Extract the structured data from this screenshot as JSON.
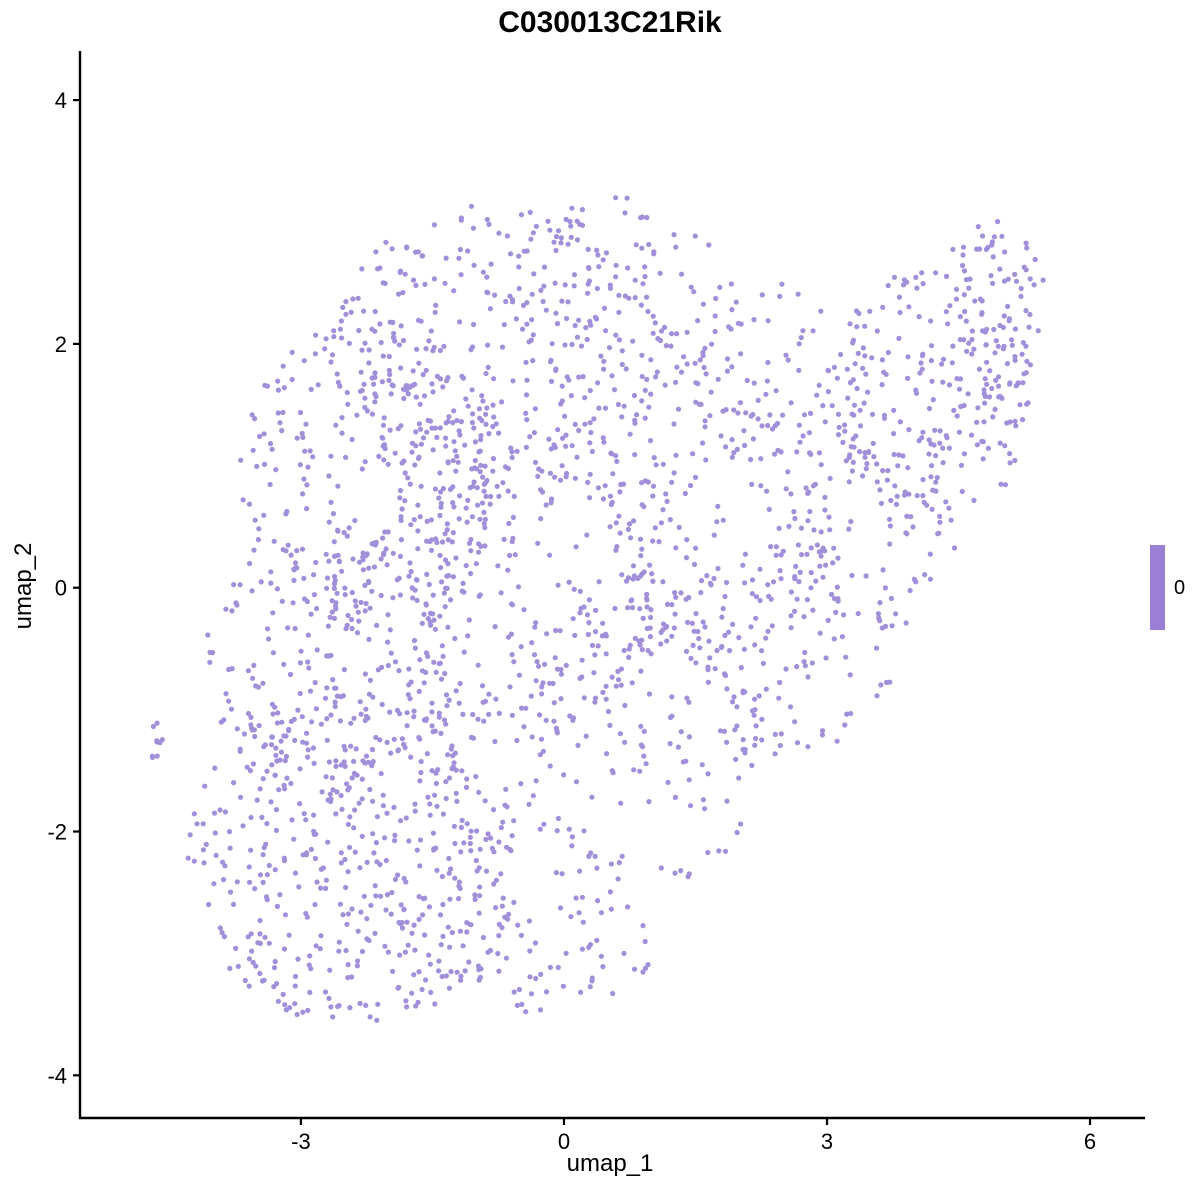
{
  "chart_data": {
    "type": "scatter",
    "title": "C030013C21Rik",
    "xlabel": "umap_1",
    "ylabel": "umap_2",
    "xlim": [
      -5.52,
      6.57
    ],
    "ylim": [
      -4.35,
      4.37
    ],
    "xticks": [
      -3,
      0,
      3,
      6
    ],
    "yticks": [
      -4,
      -2,
      0,
      2,
      4
    ],
    "grid": false,
    "legend": {
      "position": "right",
      "value_label": "0",
      "bar_color": "#9B7FD6"
    },
    "style": {
      "point_color": "#A18FD9",
      "point_radius": 2.6,
      "axis_color": "#000000",
      "tick_length": 7,
      "background": "#FFFFFF"
    },
    "seed": 1234,
    "n_points": 2484,
    "clusters": [
      {
        "cx": -2.4,
        "cy": -2.2,
        "rx": 1.9,
        "ry": 1.4,
        "n": 450
      },
      {
        "cx": -2.6,
        "cy": -0.6,
        "rx": 1.5,
        "ry": 1.1,
        "n": 220
      },
      {
        "cx": -2.2,
        "cy": 0.9,
        "rx": 1.5,
        "ry": 1.3,
        "n": 260
      },
      {
        "cx": -0.8,
        "cy": 1.9,
        "rx": 1.9,
        "ry": 1.25,
        "n": 280
      },
      {
        "cx": 0.6,
        "cy": 2.4,
        "rx": 1.3,
        "ry": 0.8,
        "n": 100
      },
      {
        "cx": -0.3,
        "cy": 0.1,
        "rx": 1.6,
        "ry": 1.5,
        "n": 230
      },
      {
        "cx": 0.9,
        "cy": -1.2,
        "rx": 1.5,
        "ry": 1.3,
        "n": 170
      },
      {
        "cx": 1.7,
        "cy": 0.6,
        "rx": 1.4,
        "ry": 1.3,
        "n": 140
      },
      {
        "cx": 2.6,
        "cy": -0.5,
        "rx": 1.2,
        "ry": 0.9,
        "n": 95
      },
      {
        "cx": 3.4,
        "cy": 0.6,
        "rx": 1.1,
        "ry": 1.0,
        "n": 100
      },
      {
        "cx": 4.2,
        "cy": 1.6,
        "rx": 1.15,
        "ry": 1.1,
        "n": 200
      },
      {
        "cx": 4.9,
        "cy": 2.3,
        "rx": 0.6,
        "ry": 0.75,
        "n": 80
      },
      {
        "cx": -0.5,
        "cy": -2.9,
        "rx": 1.6,
        "ry": 0.6,
        "n": 80
      },
      {
        "cx": 2.2,
        "cy": 1.8,
        "rx": 1.0,
        "ry": 0.8,
        "n": 70
      },
      {
        "cx": -4.65,
        "cy": -1.25,
        "rx": 0.1,
        "ry": 0.17,
        "n": 9
      }
    ]
  }
}
